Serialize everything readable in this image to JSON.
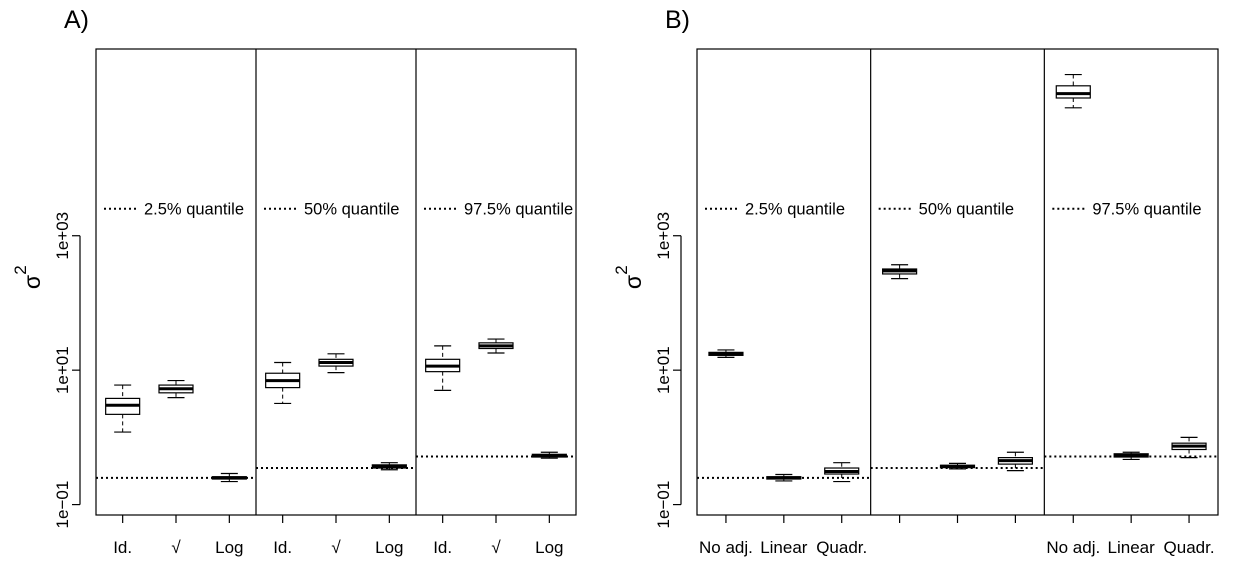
{
  "chart_data": [
    {
      "panel_label": "A)",
      "type": "box",
      "ylabel": "σ",
      "ylabel_superscript": "2",
      "yscale": "log",
      "ylim": [
        0.07,
        600000
      ],
      "ytick_values": [
        0.1,
        10,
        1000
      ],
      "ytick_labels": [
        "1e−01",
        "1e+01",
        "1e+03"
      ],
      "groups": [
        {
          "legend_label": "2.5% quantile",
          "reference_line": 0.25,
          "categories": [
            "Id.",
            "√",
            "Log"
          ],
          "boxes": [
            {
              "category": "Id.",
              "whisker_low": 1.2,
              "q1": 2.2,
              "median": 3.0,
              "q3": 3.8,
              "whisker_high": 6.0
            },
            {
              "category": "√",
              "whisker_low": 3.9,
              "q1": 4.6,
              "median": 5.3,
              "q3": 6.0,
              "whisker_high": 7.0
            },
            {
              "category": "Log",
              "whisker_low": 0.22,
              "q1": 0.24,
              "median": 0.25,
              "q3": 0.26,
              "whisker_high": 0.29
            }
          ]
        },
        {
          "legend_label": "50% quantile",
          "reference_line": 0.35,
          "categories": [
            "Id.",
            "√",
            "Log"
          ],
          "boxes": [
            {
              "category": "Id.",
              "whisker_low": 3.2,
              "q1": 5.5,
              "median": 7.0,
              "q3": 9.0,
              "whisker_high": 13.0
            },
            {
              "category": "√",
              "whisker_low": 9.2,
              "q1": 11.5,
              "median": 13.0,
              "q3": 14.5,
              "whisker_high": 17.5
            },
            {
              "category": "Log",
              "whisker_low": 0.33,
              "q1": 0.35,
              "median": 0.37,
              "q3": 0.39,
              "whisker_high": 0.42
            }
          ]
        },
        {
          "legend_label": "97.5% quantile",
          "reference_line": 0.52,
          "categories": [
            "Id.",
            "√",
            "Log"
          ],
          "boxes": [
            {
              "category": "Id.",
              "whisker_low": 5.0,
              "q1": 9.5,
              "median": 11.5,
              "q3": 14.5,
              "whisker_high": 23.0
            },
            {
              "category": "√",
              "whisker_low": 18.0,
              "q1": 21.0,
              "median": 23.0,
              "q3": 25.5,
              "whisker_high": 29.0
            },
            {
              "category": "Log",
              "whisker_low": 0.49,
              "q1": 0.51,
              "median": 0.53,
              "q3": 0.56,
              "whisker_high": 0.6
            }
          ]
        }
      ]
    },
    {
      "panel_label": "B)",
      "type": "box",
      "ylabel": "σ",
      "ylabel_superscript": "2",
      "yscale": "log",
      "ylim": [
        0.07,
        600000
      ],
      "ytick_values": [
        0.1,
        10,
        1000
      ],
      "ytick_labels": [
        "1e−01",
        "1e+01",
        "1e+03"
      ],
      "groups": [
        {
          "legend_label": "2.5% quantile",
          "reference_line": 0.25,
          "categories": [
            "No adj.",
            "Linear",
            "Quadr."
          ],
          "boxes": [
            {
              "category": "No adj.",
              "whisker_low": 15.5,
              "q1": 16.6,
              "median": 17.5,
              "q3": 18.4,
              "whisker_high": 20.0
            },
            {
              "category": "Linear",
              "whisker_low": 0.225,
              "q1": 0.24,
              "median": 0.25,
              "q3": 0.26,
              "whisker_high": 0.28
            },
            {
              "category": "Quadr.",
              "whisker_low": 0.22,
              "q1": 0.285,
              "median": 0.31,
              "q3": 0.35,
              "whisker_high": 0.42
            }
          ]
        },
        {
          "legend_label": "50% quantile",
          "reference_line": 0.35,
          "categories": [
            "",
            "",
            ""
          ],
          "boxes": [
            {
              "category": "No adj.",
              "whisker_low": 230,
              "q1": 270,
              "median": 300,
              "q3": 320,
              "whisker_high": 370
            },
            {
              "category": "Linear",
              "whisker_low": 0.34,
              "q1": 0.355,
              "median": 0.37,
              "q3": 0.385,
              "whisker_high": 0.41
            },
            {
              "category": "Quadr.",
              "whisker_low": 0.32,
              "q1": 0.4,
              "median": 0.45,
              "q3": 0.5,
              "whisker_high": 0.6
            }
          ]
        },
        {
          "legend_label": "97.5% quantile",
          "reference_line": 0.52,
          "categories": [
            "No adj.",
            "Linear",
            "Quadr."
          ],
          "boxes": [
            {
              "category": "No adj.",
              "whisker_low": 80000,
              "q1": 112000,
              "median": 130000,
              "q3": 170000,
              "whisker_high": 250000
            },
            {
              "category": "Linear",
              "whisker_low": 0.47,
              "q1": 0.51,
              "median": 0.54,
              "q3": 0.57,
              "whisker_high": 0.6
            },
            {
              "category": "Quadr.",
              "whisker_low": 0.5,
              "q1": 0.66,
              "median": 0.74,
              "q3": 0.82,
              "whisker_high": 1.0
            }
          ]
        }
      ]
    }
  ]
}
